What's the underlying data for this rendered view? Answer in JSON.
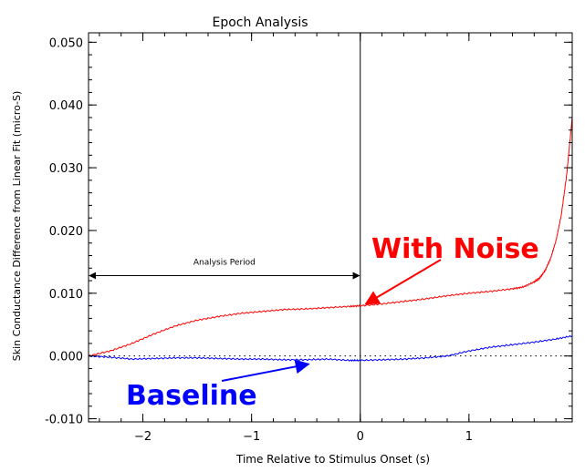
{
  "chart_data": {
    "type": "line",
    "title": "Epoch Analysis",
    "xlabel": "Time Relative to Stimulus Onset (s)",
    "ylabel": "Skin Conductance Difference from Linear Fit (micro-S)",
    "xlim": [
      -2.5,
      1.95
    ],
    "ylim": [
      -0.0105,
      0.0515
    ],
    "x_ticks": [
      -2,
      -1,
      0,
      1
    ],
    "x_tick_labels": [
      "−2",
      "−1",
      "0",
      "1"
    ],
    "y_ticks": [
      -0.01,
      0.0,
      0.01,
      0.02,
      0.03,
      0.04,
      0.05
    ],
    "y_tick_labels": [
      "-0.010",
      "0.000",
      "0.010",
      "0.020",
      "0.030",
      "0.040",
      "0.050"
    ],
    "grid": false,
    "series": [
      {
        "name": "With Noise",
        "color": "#ff0000",
        "x": [
          -2.5,
          -2.3,
          -2.1,
          -1.9,
          -1.7,
          -1.5,
          -1.3,
          -1.1,
          -0.9,
          -0.7,
          -0.5,
          -0.3,
          -0.1,
          0.0,
          0.2,
          0.4,
          0.6,
          0.8,
          1.0,
          1.2,
          1.4,
          1.5,
          1.6,
          1.65,
          1.7,
          1.75,
          1.8,
          1.85,
          1.9,
          1.95
        ],
        "values": [
          0.0,
          0.0008,
          0.002,
          0.0035,
          0.0048,
          0.0057,
          0.0063,
          0.0068,
          0.0071,
          0.0074,
          0.0075,
          0.0077,
          0.0079,
          0.008,
          0.0083,
          0.0087,
          0.0091,
          0.0096,
          0.01,
          0.0103,
          0.0107,
          0.011,
          0.0118,
          0.0124,
          0.0136,
          0.0155,
          0.0183,
          0.0225,
          0.029,
          0.038
        ]
      },
      {
        "name": "Baseline",
        "color": "#0000ff",
        "x": [
          -2.5,
          -2.3,
          -2.1,
          -1.9,
          -1.7,
          -1.5,
          -1.3,
          -1.1,
          -0.9,
          -0.7,
          -0.5,
          -0.3,
          -0.1,
          0.0,
          0.2,
          0.4,
          0.6,
          0.8,
          1.0,
          1.2,
          1.4,
          1.6,
          1.8,
          1.95
        ],
        "values": [
          0.0,
          -0.0002,
          -0.0005,
          -0.0004,
          -0.0003,
          -0.0003,
          -0.0004,
          -0.0005,
          -0.0005,
          -0.0006,
          -0.0006,
          -0.0005,
          -0.0007,
          -0.0007,
          -0.0006,
          -0.0005,
          -0.0003,
          0.0,
          0.0008,
          0.0014,
          0.0018,
          0.0022,
          0.0027,
          0.0032
        ]
      }
    ],
    "reference_lines": [
      {
        "orientation": "horizontal",
        "y": 0.0,
        "style": "dotted"
      },
      {
        "orientation": "vertical",
        "x": 0.0,
        "style": "solid"
      }
    ],
    "annotations": [
      {
        "text": "Analysis Period",
        "type": "double-arrow",
        "x_range": [
          -2.5,
          0.0
        ],
        "y": 0.0128
      },
      {
        "text": "With Noise",
        "color": "#ff0000",
        "arrow_to": [
          0.0,
          0.008
        ]
      },
      {
        "text": "Baseline",
        "color": "#0000ff",
        "arrow_to": [
          -0.45,
          -0.001
        ]
      }
    ]
  }
}
